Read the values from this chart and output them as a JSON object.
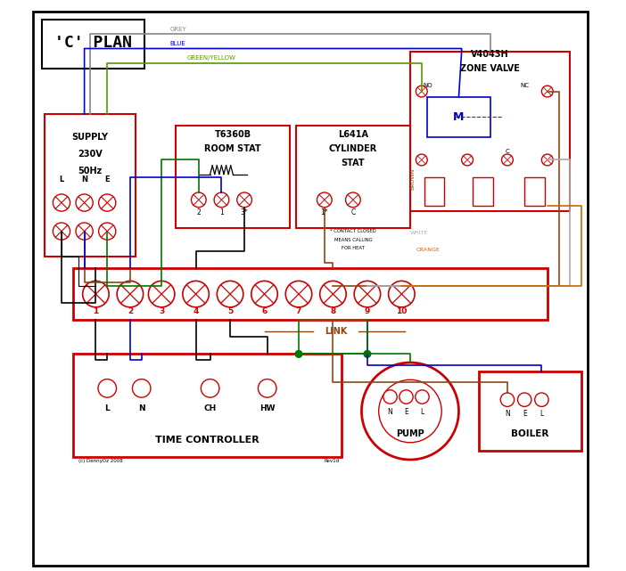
{
  "bg_color": "#f2f2f2",
  "red": "#cc0000",
  "blue": "#0000cc",
  "green": "#007700",
  "green_yellow": "#559900",
  "brown": "#8B4513",
  "orange": "#cc6600",
  "grey": "#888888",
  "black": "#000000",
  "white_wire": "#aaaaaa",
  "title": "'C' PLAN",
  "supply_text": [
    "SUPPLY",
    "230V",
    "50Hz"
  ],
  "zone_valve_text": [
    "V4043H",
    "ZONE VALVE"
  ],
  "room_stat_text": [
    "T6360B",
    "ROOM STAT"
  ],
  "cylinder_stat_text": [
    "L641A",
    "CYLINDER",
    "STAT"
  ],
  "cyl_note": [
    "* CONTACT CLOSED",
    "MEANS CALLING",
    "FOR HEAT"
  ],
  "time_controller_text": "TIME CONTROLLER",
  "pump_text": "PUMP",
  "boiler_text": "BOILER",
  "link_text": "LINK",
  "terminals": [
    1,
    2,
    3,
    4,
    5,
    6,
    7,
    8,
    9,
    10
  ],
  "copyright": "(c) DennyOz 2008",
  "revision": "Rev1d"
}
